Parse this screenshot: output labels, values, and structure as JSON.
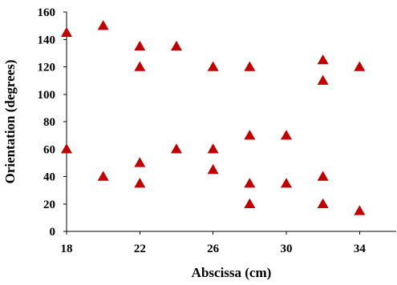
{
  "chart_data": {
    "type": "scatter",
    "title": "",
    "xlabel": "Abscissa (cm)",
    "ylabel": "Orientation (degrees)",
    "xlim": [
      18,
      36
    ],
    "ylim": [
      0,
      160
    ],
    "x_ticks": [
      18,
      22,
      26,
      30,
      34
    ],
    "y_ticks": [
      0,
      20,
      40,
      60,
      80,
      100,
      120,
      140,
      160
    ],
    "grid": false,
    "legend": "none",
    "marker": "triangle",
    "marker_color": "#c00000",
    "series": [
      {
        "points": [
          [
            18,
            145
          ],
          [
            18,
            60
          ],
          [
            20,
            150
          ],
          [
            20,
            40
          ],
          [
            22,
            135
          ],
          [
            22,
            120
          ],
          [
            22,
            50
          ],
          [
            22,
            35
          ],
          [
            24,
            135
          ],
          [
            24,
            60
          ],
          [
            26,
            120
          ],
          [
            26,
            60
          ],
          [
            26,
            45
          ],
          [
            28,
            120
          ],
          [
            28,
            70
          ],
          [
            28,
            35
          ],
          [
            28,
            20
          ],
          [
            30,
            70
          ],
          [
            30,
            35
          ],
          [
            32,
            125
          ],
          [
            32,
            110
          ],
          [
            32,
            40
          ],
          [
            32,
            20
          ],
          [
            34,
            120
          ],
          [
            34,
            15
          ]
        ]
      }
    ]
  }
}
